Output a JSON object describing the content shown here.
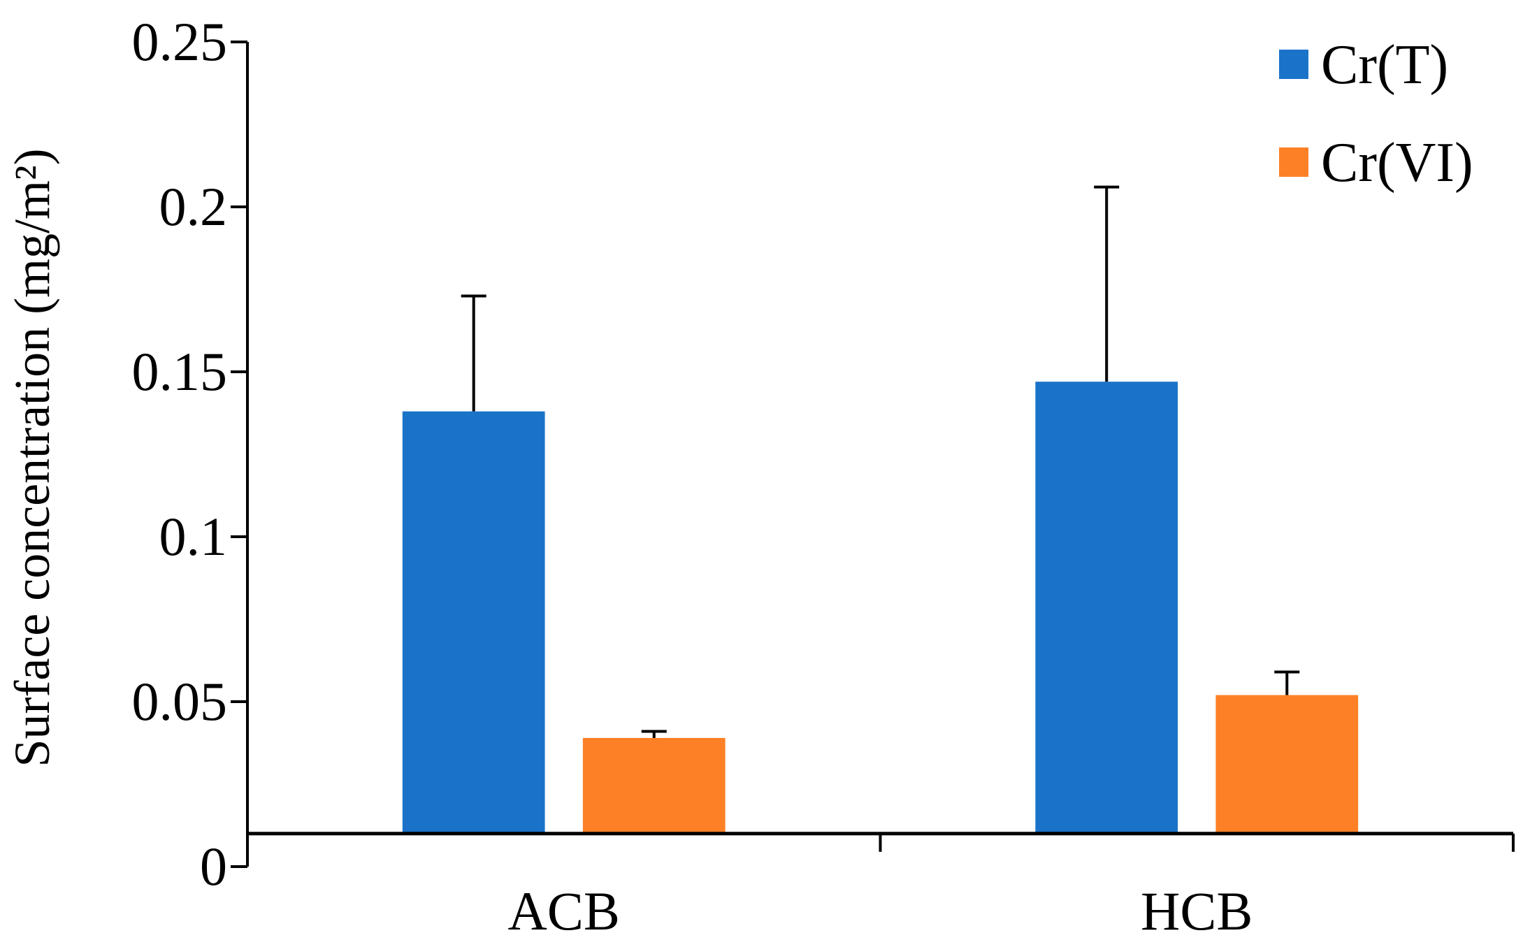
{
  "chart_data": {
    "type": "bar",
    "categories": [
      "ACB",
      "HCB"
    ],
    "series": [
      {
        "name": "Cr(T)",
        "color": "#1a73c8",
        "values": [
          0.138,
          0.147
        ],
        "error_plus": [
          0.035,
          0.059
        ]
      },
      {
        "name": "Cr(VI)",
        "color": "#fd8026",
        "values": [
          0.039,
          0.052
        ],
        "error_plus": [
          0.002,
          0.007
        ]
      }
    ],
    "title": "",
    "xlabel": "",
    "ylabel": "Surface concentration (mg/m²)",
    "ylim": [
      0,
      0.25
    ],
    "yticks": [
      {
        "value": 0,
        "label": "0"
      },
      {
        "value": 0.05,
        "label": "0.05"
      },
      {
        "value": 0.1,
        "label": "0.1"
      },
      {
        "value": 0.15,
        "label": "0.15"
      },
      {
        "value": 0.2,
        "label": "0.2"
      },
      {
        "value": 0.25,
        "label": "0.25"
      }
    ],
    "x_axis_at": 0.01,
    "grid": false,
    "legend": "top-right"
  }
}
